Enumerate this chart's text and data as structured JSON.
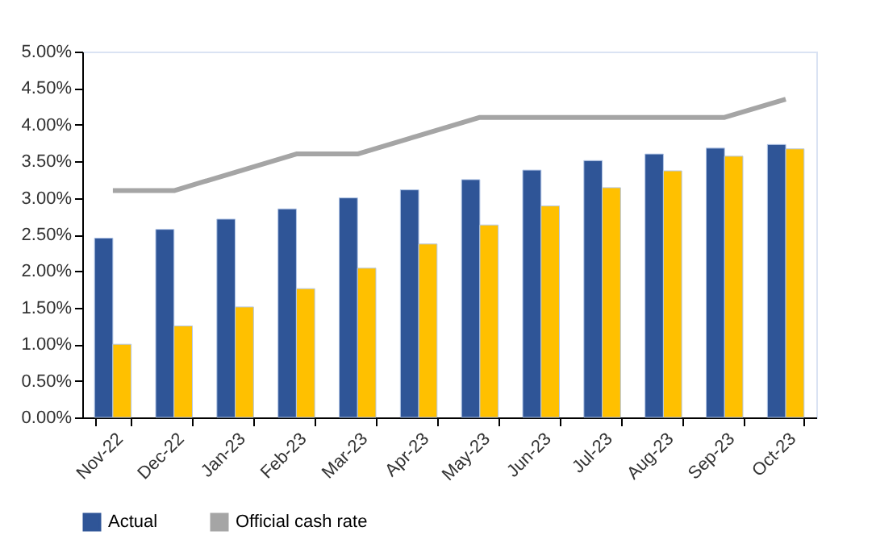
{
  "chart_data": {
    "type": "bar",
    "categories": [
      "Nov-22",
      "Dec-22",
      "Jan-23",
      "Feb-23",
      "Mar-23",
      "Apr-23",
      "May-23",
      "Jun-23",
      "Jul-23",
      "Aug-23",
      "Sep-23",
      "Oct-23"
    ],
    "series": [
      {
        "name": "Actual",
        "color": "#2f5597",
        "values": [
          2.45,
          2.57,
          2.71,
          2.85,
          3.0,
          3.11,
          3.25,
          3.38,
          3.51,
          3.6,
          3.68,
          3.73
        ]
      },
      {
        "color": "#ffc000",
        "values": [
          1.0,
          1.25,
          1.51,
          1.76,
          2.04,
          2.37,
          2.63,
          2.89,
          3.14,
          3.37,
          3.57,
          3.67
        ]
      },
      {
        "name": "Official cash rate",
        "type": "line",
        "color": "#a5a5a5",
        "values": [
          3.1,
          3.1,
          3.35,
          3.6,
          3.6,
          3.85,
          4.1,
          4.1,
          4.1,
          4.1,
          4.1,
          4.35
        ]
      }
    ],
    "ylim": [
      0,
      5
    ],
    "yticks": [
      {
        "value": 0,
        "label": "0.00%"
      },
      {
        "value": 0.5,
        "label": "0.50%"
      },
      {
        "value": 1,
        "label": "1.00%"
      },
      {
        "value": 1.5,
        "label": "1.50%"
      },
      {
        "value": 2,
        "label": "2.00%"
      },
      {
        "value": 2.5,
        "label": "2.50%"
      },
      {
        "value": 3,
        "label": "3.00%"
      },
      {
        "value": 3.5,
        "label": "3.50%"
      },
      {
        "value": 4,
        "label": "4.00%"
      },
      {
        "value": 4.5,
        "label": "4.50%"
      },
      {
        "value": 5,
        "label": "5.00%"
      }
    ],
    "legend": "bottom",
    "grid": false
  }
}
